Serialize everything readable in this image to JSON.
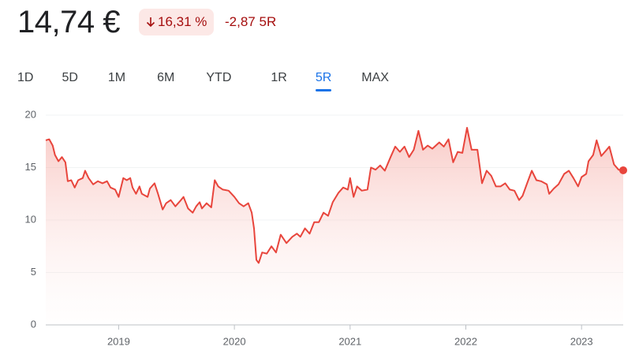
{
  "header": {
    "price": "14,74 €",
    "change_percent": "16,31 %",
    "change": "-2,87",
    "period": "5R"
  },
  "tabs": {
    "items": [
      "1D",
      "5D",
      "1M",
      "6M",
      "YTD",
      "1R",
      "5R",
      "MAX"
    ],
    "selected": 6
  },
  "chart_data": {
    "type": "line",
    "color": "#e8453c",
    "grid": true,
    "x": [
      2018.37,
      2018.4,
      2018.43,
      2018.45,
      2018.48,
      2018.51,
      2018.54,
      2018.56,
      2018.59,
      2018.62,
      2018.65,
      2018.69,
      2018.71,
      2018.74,
      2018.78,
      2018.82,
      2018.86,
      2018.9,
      2018.93,
      2018.97,
      2019.0,
      2019.04,
      2019.07,
      2019.1,
      2019.12,
      2019.15,
      2019.18,
      2019.2,
      2019.25,
      2019.27,
      2019.31,
      2019.34,
      2019.38,
      2019.41,
      2019.45,
      2019.49,
      2019.53,
      2019.56,
      2019.6,
      2019.64,
      2019.67,
      2019.7,
      2019.72,
      2019.76,
      2019.8,
      2019.83,
      2019.86,
      2019.9,
      2019.95,
      2020.0,
      2020.04,
      2020.08,
      2020.12,
      2020.15,
      2020.17,
      2020.19,
      2020.21,
      2020.24,
      2020.28,
      2020.32,
      2020.36,
      2020.4,
      2020.45,
      2020.5,
      2020.54,
      2020.57,
      2020.61,
      2020.65,
      2020.69,
      2020.73,
      2020.77,
      2020.81,
      2020.85,
      2020.9,
      2020.94,
      2020.98,
      2021.0,
      2021.03,
      2021.06,
      2021.1,
      2021.15,
      2021.18,
      2021.22,
      2021.26,
      2021.3,
      2021.35,
      2021.39,
      2021.43,
      2021.47,
      2021.51,
      2021.55,
      2021.59,
      2021.63,
      2021.67,
      2021.71,
      2021.77,
      2021.81,
      2021.85,
      2021.89,
      2021.93,
      2021.97,
      2022.01,
      2022.05,
      2022.1,
      2022.14,
      2022.18,
      2022.22,
      2022.26,
      2022.3,
      2022.34,
      2022.38,
      2022.42,
      2022.46,
      2022.49,
      2022.53,
      2022.57,
      2022.61,
      2022.65,
      2022.7,
      2022.72,
      2022.76,
      2022.8,
      2022.85,
      2022.89,
      2022.93,
      2022.97,
      2023.0,
      2023.04,
      2023.06,
      2023.1,
      2023.13,
      2023.17,
      2023.21,
      2023.24,
      2023.28,
      2023.32,
      2023.36
    ],
    "values": [
      17.6,
      17.7,
      17.1,
      16.2,
      15.6,
      16,
      15.5,
      13.7,
      13.8,
      13.1,
      13.8,
      14,
      14.7,
      14,
      13.4,
      13.7,
      13.5,
      13.7,
      13.1,
      12.9,
      12.2,
      14,
      13.8,
      14,
      13.1,
      12.5,
      13.2,
      12.5,
      12.2,
      13,
      13.5,
      12.5,
      11,
      11.6,
      11.9,
      11.3,
      11.8,
      12.2,
      11.1,
      10.7,
      11.3,
      11.7,
      11.1,
      11.6,
      11.2,
      13.8,
      13.2,
      12.9,
      12.8,
      12.2,
      11.6,
      11.3,
      11.6,
      10.7,
      9.2,
      6.2,
      5.9,
      6.9,
      6.8,
      7.5,
      6.9,
      8.6,
      7.8,
      8.4,
      8.7,
      8.4,
      9.2,
      8.7,
      9.8,
      9.8,
      10.7,
      10.4,
      11.7,
      12.6,
      13.1,
      12.9,
      14,
      12.2,
      13.2,
      12.8,
      12.9,
      15,
      14.8,
      15.2,
      14.7,
      16,
      17,
      16.5,
      17,
      16,
      16.7,
      18.5,
      16.7,
      17.1,
      16.8,
      17.4,
      17,
      17.7,
      15.5,
      16.5,
      16.4,
      18.8,
      16.7,
      16.7,
      13.5,
      14.7,
      14.2,
      13.2,
      13.2,
      13.5,
      12.9,
      12.8,
      11.9,
      12.3,
      13.5,
      14.7,
      13.8,
      13.7,
      13.4,
      12.5,
      13,
      13.4,
      14.4,
      14.7,
      14,
      13.2,
      14.1,
      14.4,
      15.6,
      16.2,
      17.6,
      16.1,
      16.6,
      17,
      15.3,
      14.8,
      14.74
    ],
    "xlim": [
      2018.37,
      2023.36
    ],
    "xticks": [
      2019,
      2020,
      2021,
      2022,
      2023
    ],
    "ylim": [
      0,
      20
    ],
    "yticks": [
      0,
      5,
      10,
      15,
      20
    ]
  }
}
